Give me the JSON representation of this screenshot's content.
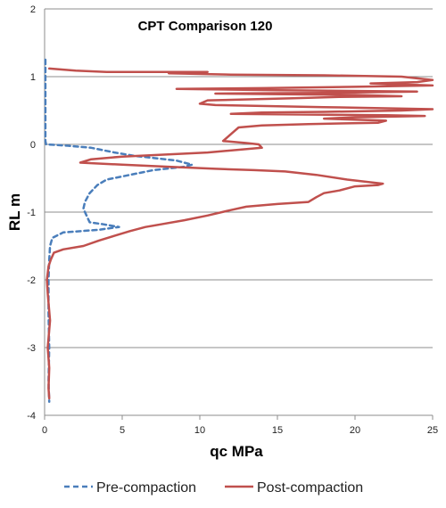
{
  "chart_data": {
    "type": "line",
    "title": "CPT Comparison 120",
    "xlabel": "qc MPa",
    "ylabel": "RL m",
    "xlim": [
      0,
      25
    ],
    "ylim": [
      -4,
      2
    ],
    "xticks": [
      "0",
      "5",
      "10",
      "15",
      "20",
      "25"
    ],
    "yticks": [
      "-4",
      "-3",
      "-2",
      "-1",
      "0",
      "1",
      "2"
    ],
    "grid": "horizontal",
    "legend_position": "bottom",
    "series": [
      {
        "name": "Pre-compaction",
        "color": "#4a7ebb",
        "dash": "dashed",
        "points": [
          [
            0.05,
            1.25
          ],
          [
            0.05,
            1.0
          ],
          [
            0.05,
            0.5
          ],
          [
            0.05,
            0.05
          ],
          [
            0.1,
            0.0
          ],
          [
            1.5,
            -0.02
          ],
          [
            3.0,
            -0.05
          ],
          [
            4.5,
            -0.12
          ],
          [
            5.8,
            -0.17
          ],
          [
            7.0,
            -0.2
          ],
          [
            8.5,
            -0.24
          ],
          [
            9.5,
            -0.3
          ],
          [
            9.0,
            -0.33
          ],
          [
            7.0,
            -0.38
          ],
          [
            5.5,
            -0.45
          ],
          [
            4.0,
            -0.52
          ],
          [
            3.4,
            -0.6
          ],
          [
            2.9,
            -0.72
          ],
          [
            2.6,
            -0.85
          ],
          [
            2.5,
            -0.95
          ],
          [
            2.7,
            -1.05
          ],
          [
            2.9,
            -1.15
          ],
          [
            3.8,
            -1.18
          ],
          [
            4.8,
            -1.22
          ],
          [
            3.5,
            -1.26
          ],
          [
            1.2,
            -1.3
          ],
          [
            0.5,
            -1.38
          ],
          [
            0.35,
            -1.5
          ],
          [
            0.3,
            -1.7
          ],
          [
            0.25,
            -2.0
          ],
          [
            0.25,
            -2.5
          ],
          [
            0.3,
            -3.0
          ],
          [
            0.25,
            -3.5
          ],
          [
            0.3,
            -3.8
          ]
        ]
      },
      {
        "name": "Post-compaction",
        "color": "#c0504d",
        "dash": "solid",
        "points": [
          [
            0.3,
            1.12
          ],
          [
            2.0,
            1.09
          ],
          [
            4.0,
            1.07
          ],
          [
            10.5,
            1.07
          ],
          [
            8.0,
            1.05
          ],
          [
            12.0,
            1.03
          ],
          [
            18.0,
            1.02
          ],
          [
            23.0,
            1.0
          ],
          [
            25.0,
            0.95
          ],
          [
            24.0,
            0.92
          ],
          [
            21.0,
            0.9
          ],
          [
            25.0,
            0.87
          ],
          [
            20.0,
            0.85
          ],
          [
            14.0,
            0.83
          ],
          [
            8.5,
            0.82
          ],
          [
            15.0,
            0.8
          ],
          [
            24.0,
            0.78
          ],
          [
            18.0,
            0.76
          ],
          [
            11.0,
            0.75
          ],
          [
            20.0,
            0.73
          ],
          [
            23.0,
            0.71
          ],
          [
            19.0,
            0.7
          ],
          [
            16.0,
            0.68
          ],
          [
            10.5,
            0.65
          ],
          [
            10.0,
            0.6
          ],
          [
            11.0,
            0.58
          ],
          [
            18.0,
            0.55
          ],
          [
            25.0,
            0.52
          ],
          [
            23.0,
            0.5
          ],
          [
            18.0,
            0.48
          ],
          [
            14.0,
            0.47
          ],
          [
            12.0,
            0.45
          ],
          [
            22.0,
            0.43
          ],
          [
            24.5,
            0.42
          ],
          [
            20.0,
            0.4
          ],
          [
            18.0,
            0.38
          ],
          [
            22.0,
            0.35
          ],
          [
            21.5,
            0.32
          ],
          [
            17.0,
            0.3
          ],
          [
            14.0,
            0.28
          ],
          [
            12.5,
            0.25
          ],
          [
            12.0,
            0.15
          ],
          [
            11.5,
            0.05
          ],
          [
            13.0,
            0.02
          ],
          [
            13.8,
            0.0
          ],
          [
            14.0,
            -0.05
          ],
          [
            10.5,
            -0.12
          ],
          [
            5.0,
            -0.18
          ],
          [
            3.0,
            -0.22
          ],
          [
            2.3,
            -0.27
          ],
          [
            5.0,
            -0.3
          ],
          [
            8.0,
            -0.33
          ],
          [
            11.0,
            -0.36
          ],
          [
            13.5,
            -0.38
          ],
          [
            15.5,
            -0.4
          ],
          [
            17.5,
            -0.45
          ],
          [
            19.5,
            -0.52
          ],
          [
            21.8,
            -0.58
          ],
          [
            21.5,
            -0.6
          ],
          [
            20.0,
            -0.62
          ],
          [
            19.0,
            -0.68
          ],
          [
            18.0,
            -0.72
          ],
          [
            17.5,
            -0.78
          ],
          [
            17.0,
            -0.85
          ],
          [
            15.0,
            -0.88
          ],
          [
            13.0,
            -0.92
          ],
          [
            12.0,
            -0.97
          ],
          [
            10.5,
            -1.05
          ],
          [
            9.0,
            -1.12
          ],
          [
            7.5,
            -1.18
          ],
          [
            6.5,
            -1.22
          ],
          [
            5.5,
            -1.28
          ],
          [
            4.5,
            -1.35
          ],
          [
            3.5,
            -1.42
          ],
          [
            2.5,
            -1.5
          ],
          [
            1.2,
            -1.55
          ],
          [
            0.6,
            -1.6
          ],
          [
            0.4,
            -1.7
          ],
          [
            0.25,
            -1.8
          ],
          [
            0.15,
            -2.0
          ],
          [
            0.2,
            -2.2
          ],
          [
            0.35,
            -2.6
          ],
          [
            0.2,
            -3.0
          ],
          [
            0.3,
            -3.3
          ],
          [
            0.25,
            -3.6
          ],
          [
            0.3,
            -3.75
          ]
        ]
      }
    ]
  }
}
